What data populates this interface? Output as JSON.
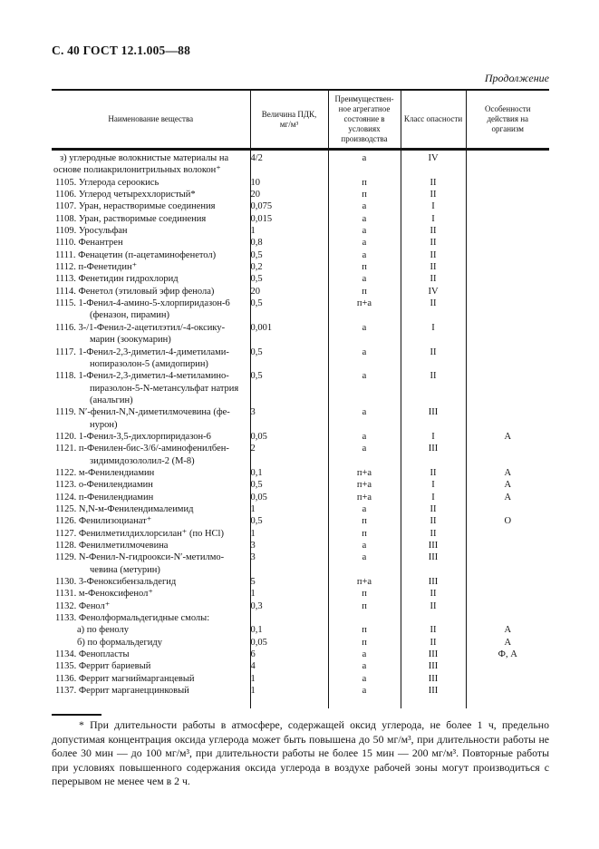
{
  "page": {
    "header": "С. 40 ГОСТ 12.1.005—88",
    "continuation": "Продолжение"
  },
  "table": {
    "columns": [
      "Наименование вещества",
      "Величина ПДК,\nмг/м³",
      "Преимуществен-\nное агрегатное\nсостояние в\nусловиях\nпроизводства",
      "Класс опасности",
      "Особенности\nдействия на\nорганизм"
    ],
    "rows": [
      {
        "name": "з)  углеродные волокнистые материалы на\nоснове полиакрилонитрильных волокон⁺",
        "pdk": "4/2",
        "state": "а",
        "hazard": "IV",
        "action": "",
        "style": "section"
      },
      {
        "name": "1105. Углерода сероокись",
        "pdk": "10",
        "state": "п",
        "hazard": "II",
        "action": "",
        "style": "num"
      },
      {
        "name": "1106. Углерод четыреххлористый*",
        "pdk": "20",
        "state": "п",
        "hazard": "II",
        "action": "",
        "style": "num"
      },
      {
        "name": "1107. Уран, нерастворимые соединения",
        "pdk": "0,075",
        "state": "а",
        "hazard": "I",
        "action": "",
        "style": "num"
      },
      {
        "name": "1108. Уран, растворимые соединения",
        "pdk": "0,015",
        "state": "а",
        "hazard": "I",
        "action": "",
        "style": "num"
      },
      {
        "name": "1109. Уросульфан",
        "pdk": "1",
        "state": "а",
        "hazard": "II",
        "action": "",
        "style": "num"
      },
      {
        "name": "1110. Фенантрен",
        "pdk": "0,8",
        "state": "а",
        "hazard": "II",
        "action": "",
        "style": "num"
      },
      {
        "name": "1111. Фенацетин (п-ацетаминофенетол)",
        "pdk": "0,5",
        "state": "а",
        "hazard": "II",
        "action": "",
        "style": "num"
      },
      {
        "name": "1112. п-Фенетидин⁺",
        "pdk": "0,2",
        "state": "п",
        "hazard": "II",
        "action": "",
        "style": "num"
      },
      {
        "name": "1113. Фенетидин гидрохлорид",
        "pdk": "0,5",
        "state": "а",
        "hazard": "II",
        "action": "",
        "style": "num"
      },
      {
        "name": "1114. Фенетол (этиловый эфир фенола)",
        "pdk": "20",
        "state": "п",
        "hazard": "IV",
        "action": "",
        "style": "num"
      },
      {
        "name": "1115. 1-Фенил-4-амино-5-хлорпиридазон-6\n(феназон, пирамин)",
        "pdk": "0,5",
        "state": "п+а",
        "hazard": "II",
        "action": "",
        "style": "num"
      },
      {
        "name": "1116. 3-/1-Фенил-2-ацетилэтил/-4-оксику-\nмарин (зоокумарин)",
        "pdk": "0,001",
        "state": "а",
        "hazard": "I",
        "action": "",
        "style": "num"
      },
      {
        "name": "1117. 1-Фенил-2,3-диметил-4-диметилами-\nнопиразолон-5 (амидопирин)",
        "pdk": "0,5",
        "state": "а",
        "hazard": "II",
        "action": "",
        "style": "num"
      },
      {
        "name": "1118. 1-Фенил-2,3-диметил-4-метиламино-\nпиразолон-5-N-метансульфат натрия\n(анальгин)",
        "pdk": "0,5",
        "state": "а",
        "hazard": "II",
        "action": "",
        "style": "num"
      },
      {
        "name": "1119. N′-фенил-N,N-диметилмочевина (фе-\nнурон)",
        "pdk": "3",
        "state": "а",
        "hazard": "III",
        "action": "",
        "style": "num"
      },
      {
        "name": "1120. 1-Фенил-3,5-дихлорпиридазон-6",
        "pdk": "0,05",
        "state": "а",
        "hazard": "I",
        "action": "А",
        "style": "num"
      },
      {
        "name": "1121. п-Фенилен-бис-3/6/-аминофенилбен-\nзидимидозололил-2 (М-8)",
        "pdk": "2",
        "state": "а",
        "hazard": "III",
        "action": "",
        "style": "num"
      },
      {
        "name": "1122. м-Фенилендиамин",
        "pdk": "0,1",
        "state": "п+а",
        "hazard": "II",
        "action": "А",
        "style": "num"
      },
      {
        "name": "1123. о-Фенилендиамин",
        "pdk": "0,5",
        "state": "п+а",
        "hazard": "I",
        "action": "А",
        "style": "num"
      },
      {
        "name": "1124. п-Фенилендиамин",
        "pdk": "0,05",
        "state": "п+а",
        "hazard": "I",
        "action": "А",
        "style": "num"
      },
      {
        "name": "1125. N,N-м-Фенилендималеимид",
        "pdk": "1",
        "state": "а",
        "hazard": "II",
        "action": "",
        "style": "num"
      },
      {
        "name": "1126. Фенилизоцианат⁺",
        "pdk": "0,5",
        "state": "п",
        "hazard": "II",
        "action": "О",
        "style": "num"
      },
      {
        "name": "1127. Фенилметилдихлорсилан⁺ (по HCl)",
        "pdk": "1",
        "state": "п",
        "hazard": "II",
        "action": "",
        "style": "num"
      },
      {
        "name": "1128. Фенилметилмочевина",
        "pdk": "3",
        "state": "а",
        "hazard": "III",
        "action": "",
        "style": "num"
      },
      {
        "name": "1129. N-Фенил-N-гидроокси-N′-метилмо-\nчевина (метурин)",
        "pdk": "3",
        "state": "а",
        "hazard": "III",
        "action": "",
        "style": "num"
      },
      {
        "name": "1130. 3-Феноксибензальдегид",
        "pdk": "5",
        "state": "п+а",
        "hazard": "III",
        "action": "",
        "style": "num"
      },
      {
        "name": "1131. м-Феноксифенол⁺",
        "pdk": "1",
        "state": "п",
        "hazard": "II",
        "action": "",
        "style": "num"
      },
      {
        "name": "1132. Фенол⁺",
        "pdk": "0,3",
        "state": "п",
        "hazard": "II",
        "action": "",
        "style": "num"
      },
      {
        "name": "1133. Фенолформальдегидные смолы:",
        "pdk": "",
        "state": "",
        "hazard": "",
        "action": "",
        "style": "num"
      },
      {
        "name": "а)  по фенолу",
        "pdk": "0,1",
        "state": "п",
        "hazard": "II",
        "action": "А",
        "style": "sub"
      },
      {
        "name": "б)  по формальдегиду",
        "pdk": "0,05",
        "state": "п",
        "hazard": "II",
        "action": "А",
        "style": "sub"
      },
      {
        "name": "1134. Фенопласты",
        "pdk": "6",
        "state": "а",
        "hazard": "III",
        "action": "Ф, А",
        "style": "num"
      },
      {
        "name": "1135. Феррит бариевый",
        "pdk": "4",
        "state": "а",
        "hazard": "III",
        "action": "",
        "style": "num"
      },
      {
        "name": "1136. Феррит магниймарганцевый",
        "pdk": "1",
        "state": "а",
        "hazard": "III",
        "action": "",
        "style": "num"
      },
      {
        "name": "1137. Феррит марганеццинковый",
        "pdk": "1",
        "state": "а",
        "hazard": "III",
        "action": "",
        "style": "num"
      }
    ]
  },
  "footnote": "* При длительности работы в атмосфере, содержащей оксид углерода, не более 1 ч, предельно допустимая концентрация оксида углерода может быть повышена до 50 мг/м³, при длительности работы не более 30 мин — до 100 мг/м³, при длительности работы не более 15 мин — 200 мг/м³. Повторные работы при условиях повышенного содержания оксида углерода в воздухе рабочей зоны могут производиться с перерывом не менее чем в 2 ч."
}
